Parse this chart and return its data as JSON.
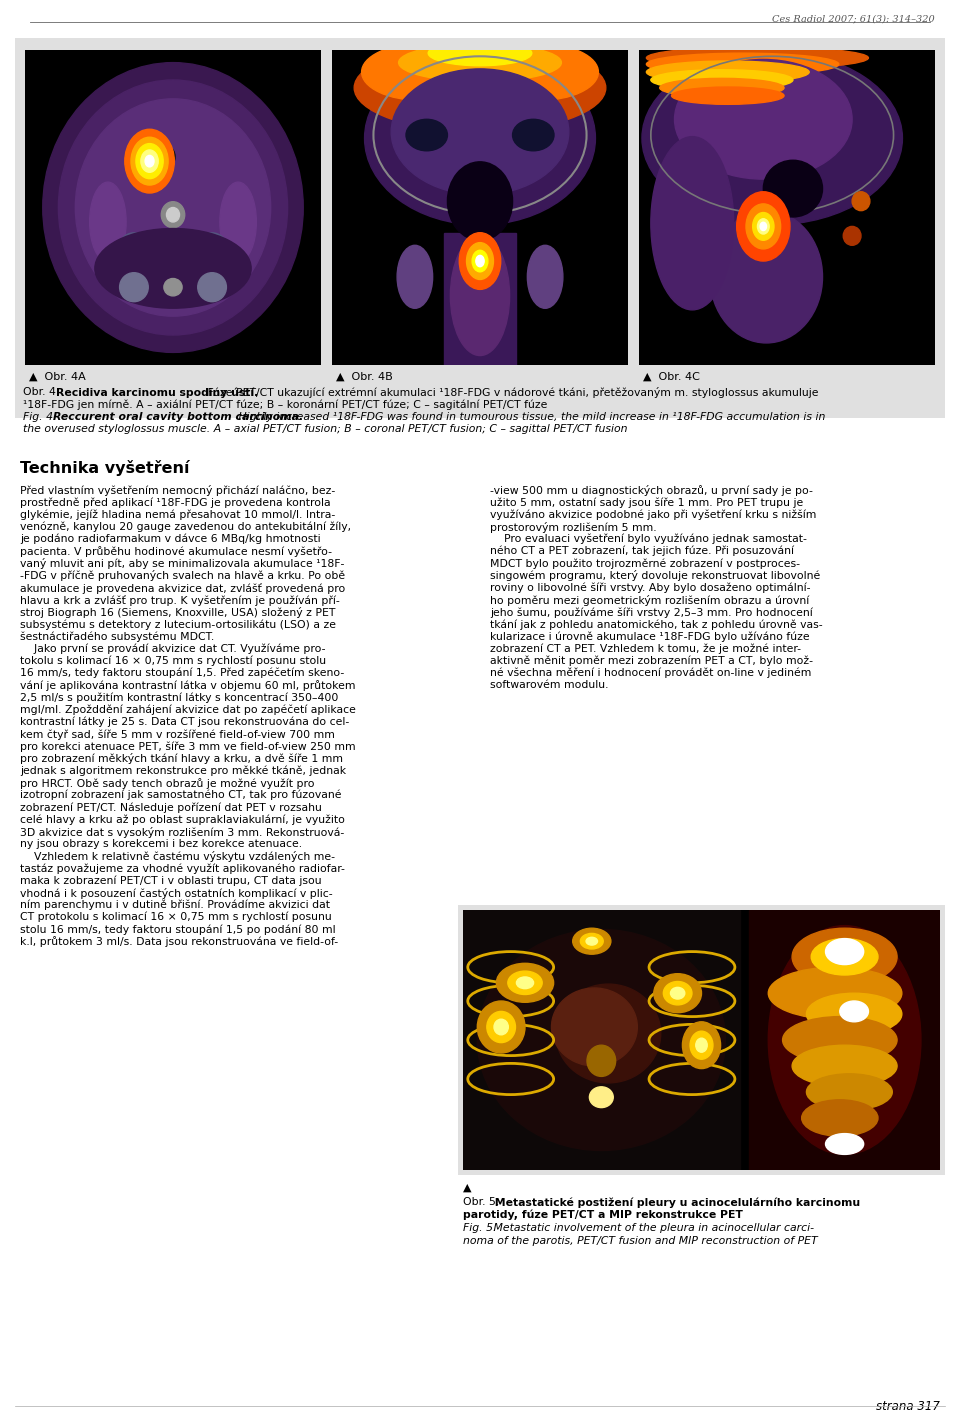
{
  "page_header": "Ces Radiol 2007; 61(3): 314–320",
  "page_footer": "strana 317",
  "fig_label_triangle": "▲",
  "fig_labels": [
    "Obr. 4A",
    "Obr. 4B",
    "Obr. 4C"
  ],
  "caption_czech_label": "Obr. 4.",
  "caption_czech_bold": "Recidiva karcinomu spodiny ústí.",
  "caption_czech_normal": " Fúze PET/CT ukazující extrémní akumulaci ¹18F-FDG v nádorové tkáni, přetěžovaným m. styloglossus akumuluje",
  "caption_czech_line2": "¹18F-FDG jen mírně. A – axiální PET/CT fúze; B – koronární PET/CT fúze; C – sagitální PET/CT fúze",
  "caption_eng_label": "Fig. 4.",
  "caption_eng_bold": "Reccurent oral cavity bottom carcinoma.",
  "caption_eng_italic1": " Highly increased ¹18F-FDG was found in tumourous tissue, the mild increase in ¹18F-FDG accumulation is in",
  "caption_eng_italic2": "the overused styloglossus muscle. A – axial PET/CT fusion; B – coronal PET/CT fusion; C – sagittal PET/CT fusion",
  "section_title": "Technika vyšetření",
  "col1_lines": [
    "Před vlastním vyšetřením nemocný přichází naláčno, bez-",
    "prostředně před aplikací ¹18F-FDG je provedena kontrola",
    "glykémie, jejíž hladina nemá přesahovat 10 mmol/l. Intra-",
    "venózně, kanylou 20 gauge zavedenou do antekubitální žíly,",
    "je podáno radiofarmakum v dávce 6 MBq/kg hmotnosti",
    "pacienta. V průběhu hodinové akumulace nesmí vyšetřo-",
    "vaný mluvit ani pít, aby se minimalizovala akumulace ¹18F-",
    "-FDG v příčně pruhovaných svalech na hlavě a krku. Po obě",
    "akumulace je provedena akvizice dat, zvlášť provedená pro",
    "hlavu a krk a zvlášť pro trup. K vyšetřením je používán pří-",
    "stroj Biograph 16 (Siemens, Knoxville, USA) složený z PET",
    "subsystému s detektory z lutecium-ortosilikátu (LSO) a ze",
    "šestnáctiřadého subsystému MDCT.",
    "    Jako první se provádí akvizice dat CT. Využíváme pro-",
    "tokolu s kolimací 16 × 0,75 mm s rychlostí posunu stolu",
    "16 mm/s, tedy faktoru stoupání 1,5. Před zapéčetím skeno-",
    "vání je aplikována kontrastní látka v objemu 60 ml, průtokem",
    "2,5 ml/s s použitím kontrastní látky s koncentrací 350–400",
    "mgI/ml. Zpožddění zahájení akvizice dat po zapéčetí aplikace",
    "kontrastní látky je 25 s. Data CT jsou rekonstruována do cel-",
    "kem čtyř sad, šíře 5 mm v rozšířené field-of-view 700 mm",
    "pro korekci atenuace PET, šíře 3 mm ve field-of-view 250 mm",
    "pro zobrazení měkkých tkání hlavy a krku, a dvě šíře 1 mm",
    "jednak s algoritmem rekonstrukce pro měkké tkáně, jednak",
    "pro HRCT. Obě sady tench obrazů je možné využít pro",
    "izotropní zobrazení jak samostatného CT, tak pro fúzované",
    "zobrazení PET/CT. Následuje pořízení dat PET v rozsahu",
    "celé hlavy a krku až po oblast supraklaviakulární, je využito",
    "3D akvizice dat s vysokým rozlišením 3 mm. Rekonstruová-",
    "ny jsou obrazy s korekcemi i bez korekce atenuace.",
    "    Vzhledem k relativně častému výskytu vzdálených me-",
    "tastáz považujeme za vhodné využít aplikovaného radiofar-",
    "maka k zobrazení PET/CT i v oblasti trupu, CT data jsou",
    "vhodná i k posouzení častých ostatních komplikací v plic-",
    "ním parenchymu i v dutině břišní. Provádíme akvizici dat",
    "CT protokolu s kolimací 16 × 0,75 mm s rychlostí posunu",
    "stolu 16 mm/s, tedy faktoru stoupání 1,5 po podání 80 ml",
    "k.l, průtokem 3 ml/s. Data jsou rekonstruována ve field-of-"
  ],
  "col2_lines": [
    "-view 500 mm u diagnostických obrazů, u první sady je po-",
    "užito 5 mm, ostatní sady jsou šíře 1 mm. Pro PET trupu je",
    "využíváno akvizice podobné jako při vyšetření krku s nižším",
    "prostorovým rozlišením 5 mm.",
    "    Pro evaluaci vyšetření bylo využíváno jednak samostat-",
    "ného CT a PET zobrazení, tak jejich fúze. Při posuzování",
    "MDCT bylo použito trojrozměrné zobrazení v postproces-",
    "singowém programu, který dovoluje rekonstruovat libovolné",
    "roviny o libovolné šíři vrstvy. Aby bylo dosaženo optimální-",
    "ho poměru mezi geometrickým rozlišením obrazu a úrovní",
    "jeho šumu, používáme šíři vrstvy 2,5–3 mm. Pro hodnocení",
    "tkání jak z pohledu anatomického, tak z pohledu úrovně vas-",
    "kularizace i úrovně akumulace ¹18F-FDG bylo užíváno fúze",
    "zobrazení CT a PET. Vzhledem k tomu, že je možné inter-",
    "aktivně měnit poměr mezi zobrazením PET a CT, bylo mož-",
    "né všechna měření i hodnocení provádět on-line v jediném",
    "softwarovém modulu."
  ],
  "fig5_label": "Obr. 5.",
  "fig5_bold_czech": " Metastatické postižení pleury u acinocelulárního karcinomu",
  "fig5_bold_czech2": "parotidy, fúze PET/CT a MIP rekonstrukce PET",
  "fig5_eng_label": "Fig. 5.",
  "fig5_italic_eng1": " Metastatic involvement of the pleura in acinocellular carci-",
  "fig5_italic_eng2": "noma of the parotis, PET/CT fusion and MIP reconstruction of PET",
  "bg_color": "#ffffff",
  "panel_bg": "#e0e0e0",
  "header_color": "#666666"
}
